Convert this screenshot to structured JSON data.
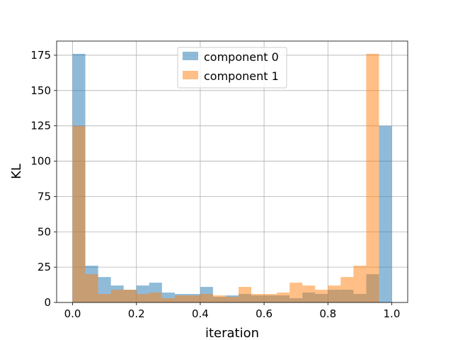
{
  "chart_data": {
    "type": "bar",
    "subtype": "overlapping-histogram",
    "xlabel": "iteration",
    "ylabel": "KL",
    "xlim": [
      -0.05,
      1.05
    ],
    "ylim": [
      0,
      185
    ],
    "xticks": [
      0.0,
      0.2,
      0.4,
      0.6,
      0.8,
      1.0
    ],
    "xtick_labels": [
      "0.0",
      "0.2",
      "0.4",
      "0.6",
      "0.8",
      "1.0"
    ],
    "yticks": [
      0,
      25,
      50,
      75,
      100,
      125,
      150,
      175
    ],
    "ytick_labels": [
      "0",
      "25",
      "50",
      "75",
      "100",
      "125",
      "150",
      "175"
    ],
    "grid": true,
    "legend_position": "top-center",
    "bin_edges": [
      0.0,
      0.04,
      0.08,
      0.12,
      0.16,
      0.2,
      0.24,
      0.28,
      0.32,
      0.36,
      0.4,
      0.44,
      0.48,
      0.52,
      0.56,
      0.6,
      0.64,
      0.68,
      0.72,
      0.76,
      0.8,
      0.84,
      0.88,
      0.92,
      0.96,
      1.0
    ],
    "series": [
      {
        "name": "component 0",
        "color": "#1f77b4",
        "opacity": 0.5,
        "values": [
          176,
          26,
          18,
          12,
          9,
          12,
          14,
          7,
          6,
          6,
          11,
          4,
          5,
          6,
          5,
          5,
          5,
          3,
          7,
          6,
          9,
          9,
          6,
          20,
          125
        ]
      },
      {
        "name": "component 1",
        "color": "#ff7f0e",
        "opacity": 0.5,
        "values": [
          125,
          20,
          6,
          9,
          9,
          6,
          7,
          3,
          5,
          5,
          6,
          5,
          4,
          11,
          6,
          6,
          7,
          14,
          12,
          9,
          12,
          18,
          26,
          176,
          0
        ]
      }
    ]
  }
}
